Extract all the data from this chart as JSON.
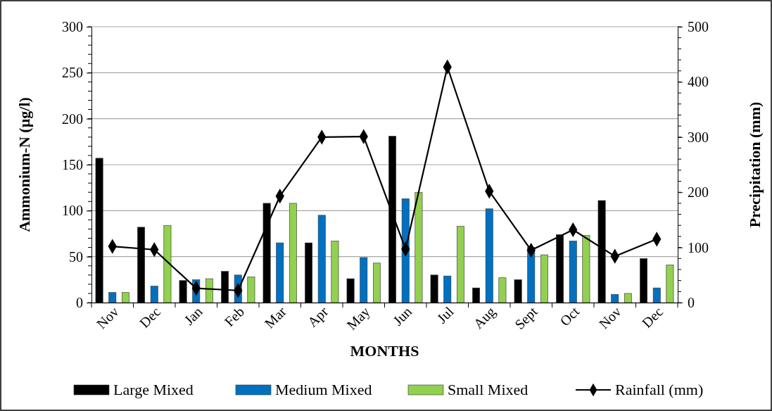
{
  "chart_data": {
    "type": "bar",
    "categories": [
      "Nov",
      "Dec",
      "Jan",
      "Feb",
      "Mar",
      "Apr",
      "May",
      "Jun",
      "Jul",
      "Aug",
      "Sept",
      "Oct",
      "Nov",
      "Dec"
    ],
    "series": [
      {
        "name": "Large Mixed",
        "color": "#000000",
        "values": [
          157,
          82,
          24,
          34,
          108,
          65,
          26,
          181,
          30,
          16,
          25,
          74,
          111,
          48
        ]
      },
      {
        "name": "Medium Mixed",
        "color": "#0070c0",
        "values": [
          11,
          18,
          25,
          30,
          65,
          95,
          49,
          113,
          29,
          102,
          60,
          67,
          9,
          16
        ]
      },
      {
        "name": "Small Mixed",
        "color": "#92d050",
        "values": [
          11,
          84,
          26,
          28,
          108,
          67,
          43,
          120,
          83,
          27,
          52,
          73,
          10,
          41
        ]
      },
      {
        "name": "Rainfall (mm)",
        "type": "line",
        "axis": "y2",
        "color": "#000000",
        "marker": "diamond",
        "values": [
          102,
          96,
          26,
          22,
          193,
          300,
          301,
          97,
          427,
          202,
          95,
          132,
          84,
          115
        ]
      }
    ],
    "xlabel": "MONTHS",
    "ylabel": "Ammonium-N (µg/l)",
    "y2label": "Precipitation (mm)",
    "ylim": [
      0,
      300
    ],
    "yticks": [
      0,
      50,
      100,
      150,
      200,
      250,
      300
    ],
    "y2lim": [
      0,
      500
    ],
    "y2ticks": [
      0,
      100,
      200,
      300,
      400,
      500
    ],
    "grid": "y",
    "legend": "bottom"
  }
}
